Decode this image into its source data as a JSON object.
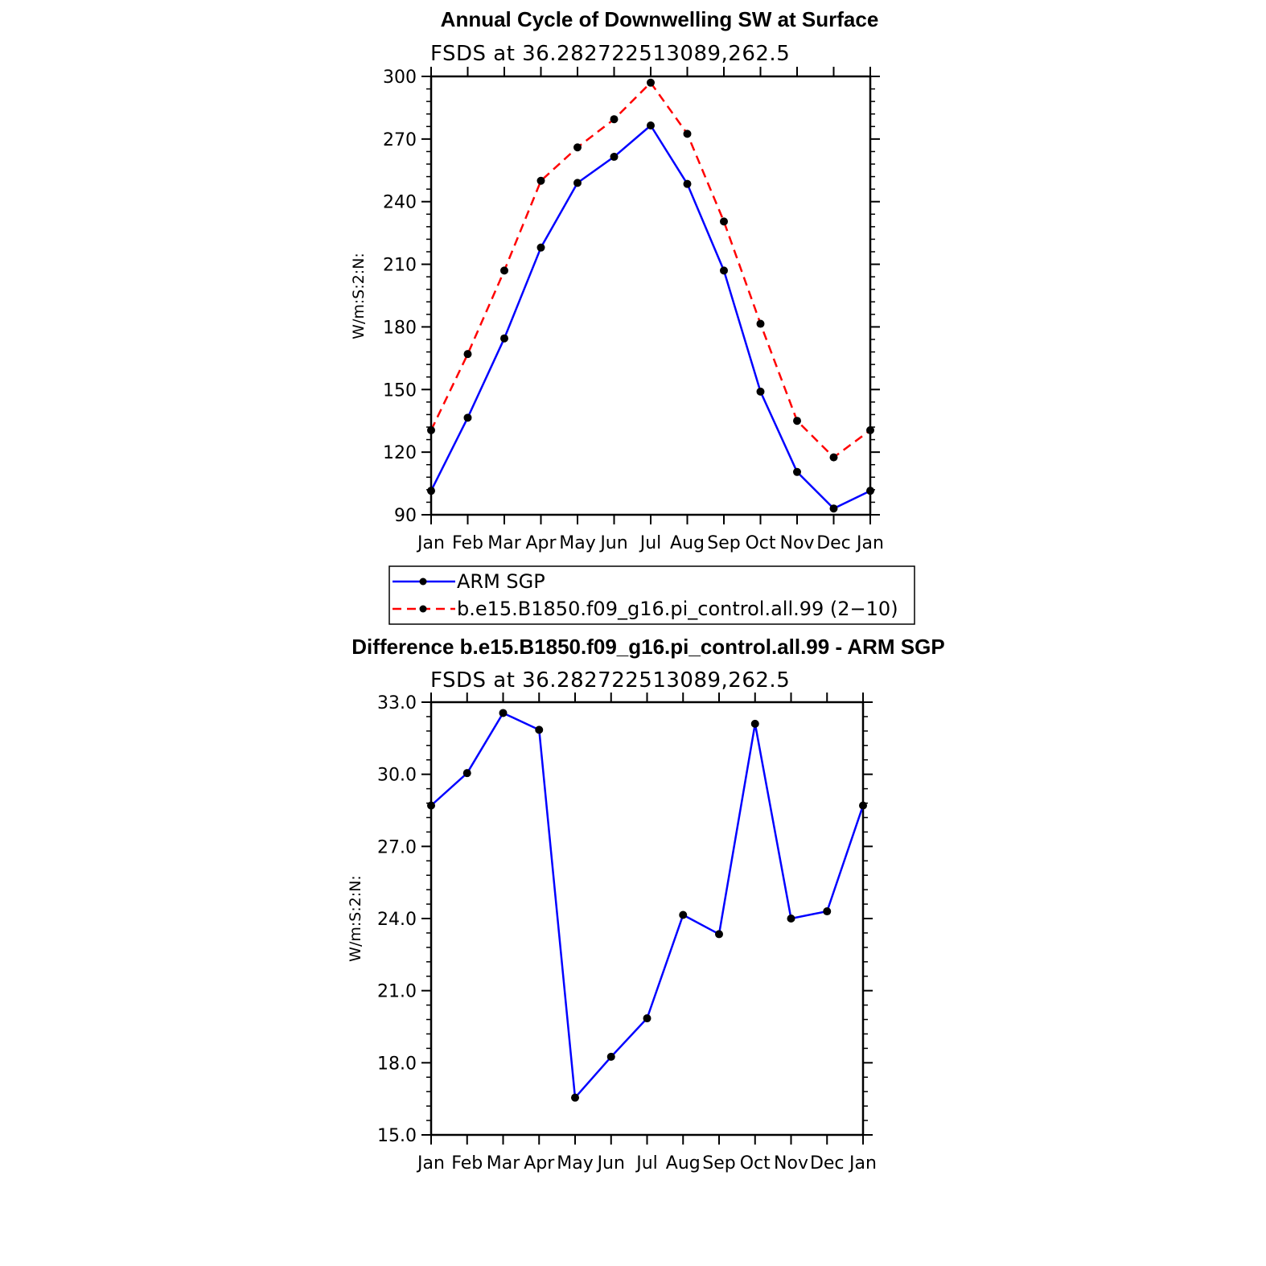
{
  "chart_data": [
    {
      "type": "line",
      "title": "Annual Cycle of Downwelling SW at Surface",
      "subtitle": "FSDS at 36.282722513089,262.5",
      "xlabel": "",
      "ylabel": "W/m:S:2:N:",
      "categories": [
        "Jan",
        "Feb",
        "Mar",
        "Apr",
        "May",
        "Jun",
        "Jul",
        "Aug",
        "Sep",
        "Oct",
        "Nov",
        "Dec",
        "Jan"
      ],
      "ylim": [
        90,
        300
      ],
      "yticks": [
        "90",
        "120",
        "150",
        "180",
        "210",
        "240",
        "270",
        "300"
      ],
      "series": [
        {
          "name": "ARM SGP",
          "color": "#0000ff",
          "dash": "solid",
          "values": [
            101.5,
            136.5,
            174.5,
            218,
            249,
            261.5,
            276.5,
            248.5,
            207,
            149,
            110.5,
            93,
            101.5
          ]
        },
        {
          "name": "b.e15.B1850.f09_g16.pi_control.all.99 (2−10)",
          "color": "#ff0000",
          "dash": "dashed",
          "values": [
            130.5,
            167,
            207,
            250,
            266,
            279.5,
            297,
            272.5,
            230.5,
            181.5,
            135,
            117.5,
            130.5
          ]
        }
      ],
      "legend": {
        "placement": "below",
        "entries": [
          "ARM SGP",
          "b.e15.B1850.f09_g16.pi_control.all.99 (2−10)"
        ]
      }
    },
    {
      "type": "line",
      "title": "Difference b.e15.B1850.f09_g16.pi_control.all.99 - ARM SGP",
      "subtitle": "FSDS at 36.282722513089,262.5",
      "xlabel": "",
      "ylabel": "W/m:S:2:N:",
      "categories": [
        "Jan",
        "Feb",
        "Mar",
        "Apr",
        "May",
        "Jun",
        "Jul",
        "Aug",
        "Sep",
        "Oct",
        "Nov",
        "Dec",
        "Jan"
      ],
      "ylim": [
        15,
        33
      ],
      "yticks": [
        "15.0",
        "18.0",
        "21.0",
        "24.0",
        "27.0",
        "30.0",
        "33.0"
      ],
      "series": [
        {
          "name": "Difference",
          "color": "#0000ff",
          "dash": "solid",
          "values": [
            28.7,
            30.05,
            32.55,
            31.85,
            16.55,
            18.25,
            19.85,
            24.15,
            23.35,
            32.1,
            24.0,
            24.3,
            28.7
          ]
        }
      ]
    }
  ]
}
